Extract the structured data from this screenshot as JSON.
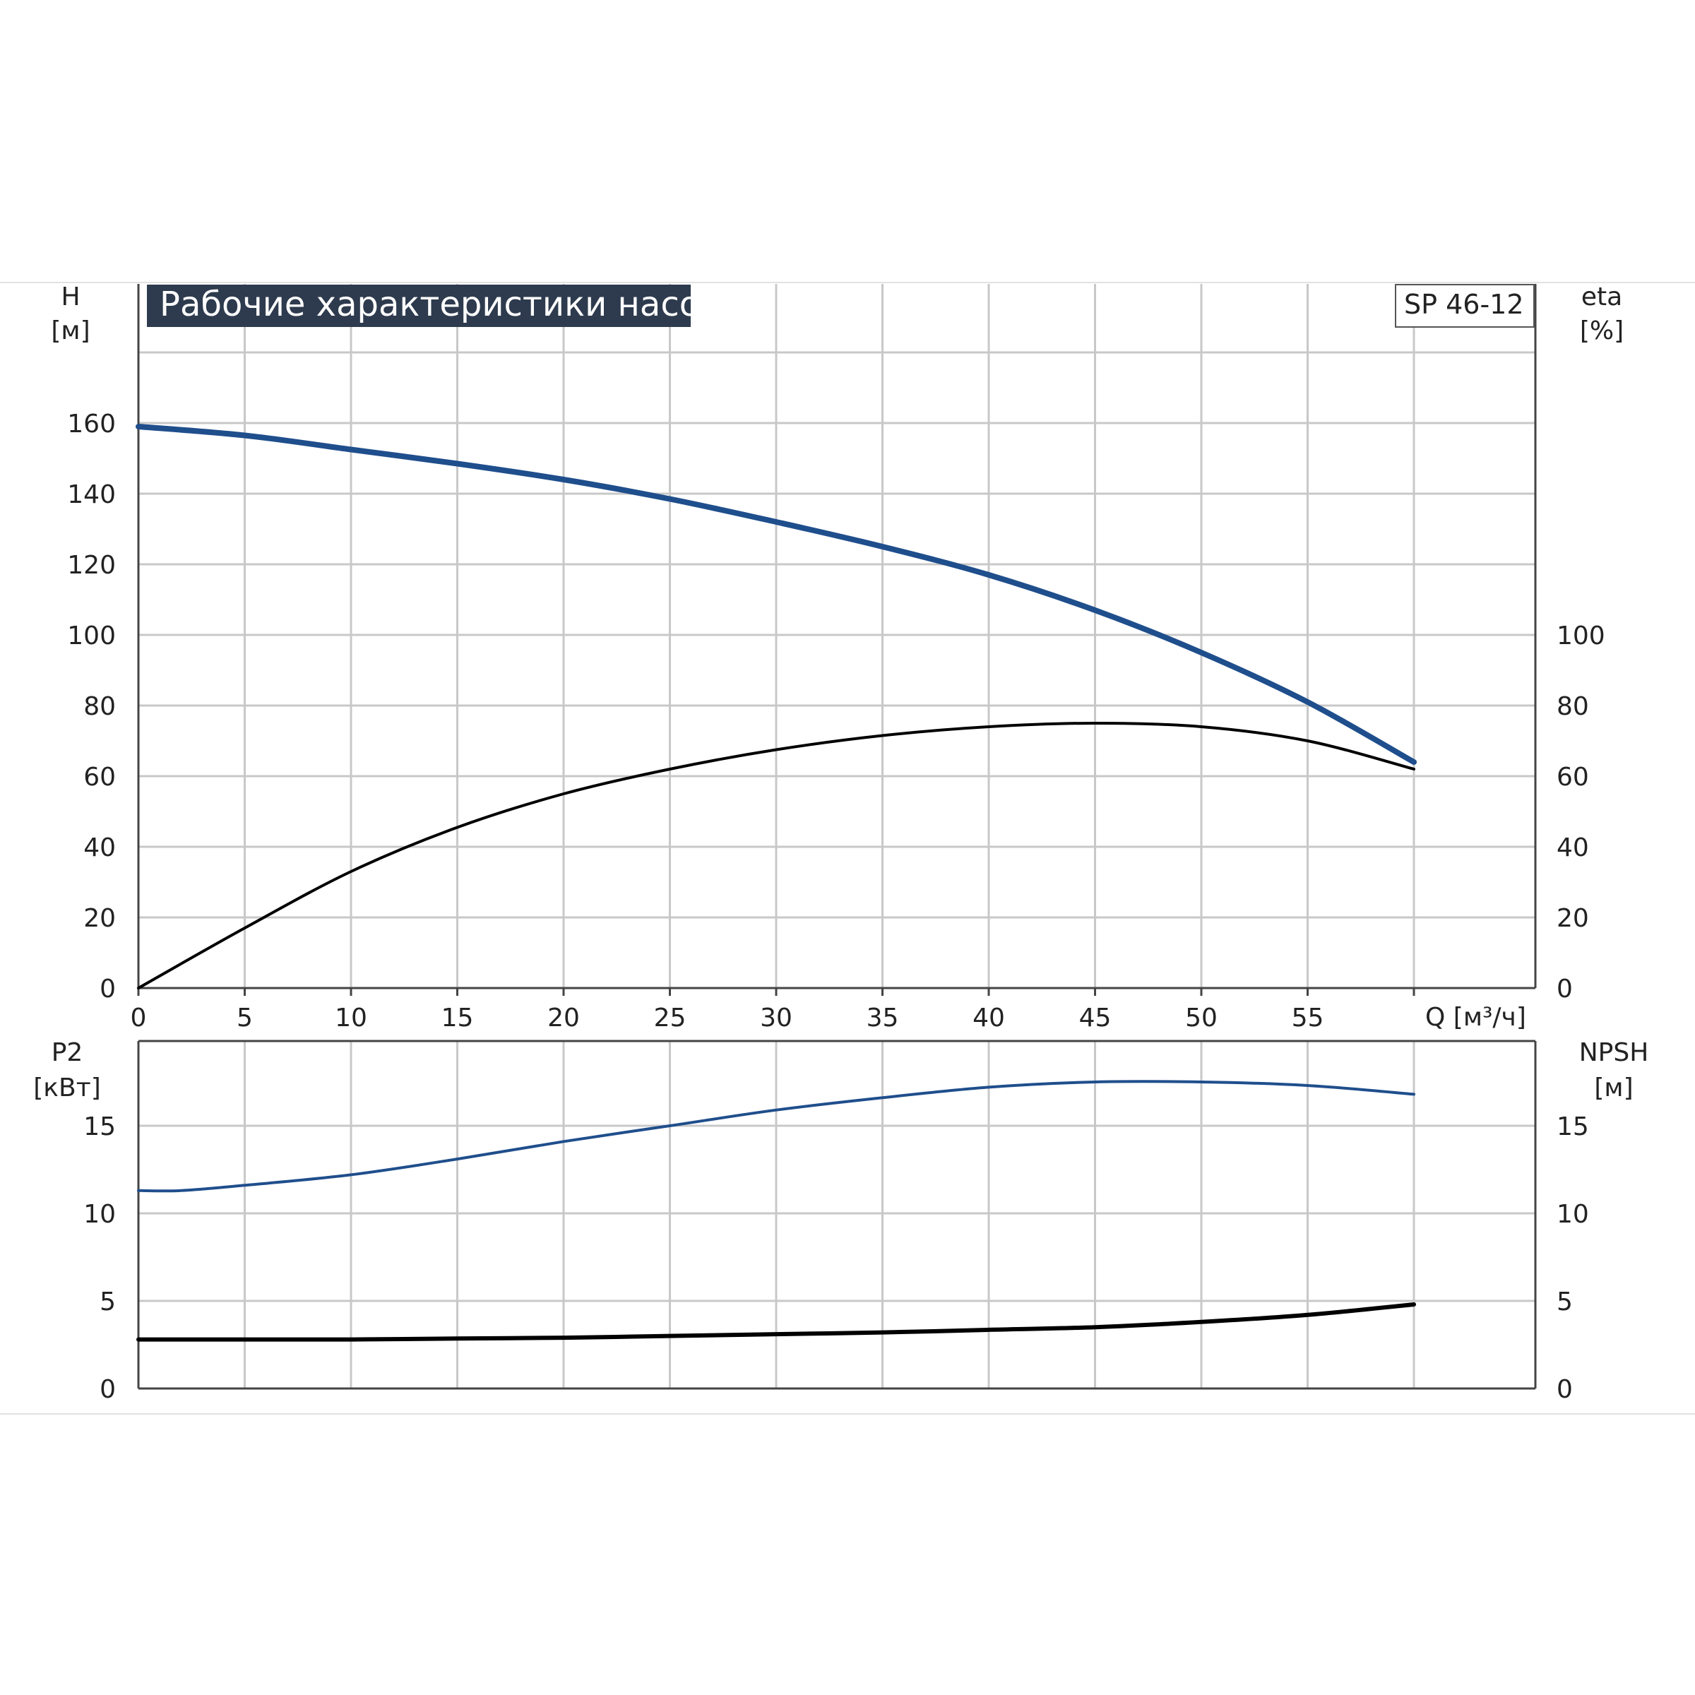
{
  "chart_data": [
    {
      "type": "line",
      "title": "Рабочие характеристики насоса",
      "model": "SP 46-12",
      "xlabel": "Q [м³/ч]",
      "ylabel": [
        "H",
        "[м]"
      ],
      "ylabel_right": [
        "eta",
        "[%]"
      ],
      "xlim": [
        0,
        65
      ],
      "ylim": [
        0,
        195
      ],
      "ylim_right": [
        0,
        195
      ],
      "x_ticks": [
        "0",
        "5",
        "10",
        "15",
        "20",
        "25",
        "30",
        "35",
        "40",
        "45",
        "50",
        "55"
      ],
      "y_ticks": [
        "0",
        "20",
        "40",
        "60",
        "80",
        "100",
        "120",
        "140",
        "160"
      ],
      "y_ticks_right": [
        "0",
        "20",
        "40",
        "60",
        "80",
        "100"
      ],
      "grid": true,
      "series": [
        {
          "color": "#1f4e8c",
          "axis": "left",
          "x": [
            0,
            5,
            10,
            15,
            20,
            25,
            30,
            35,
            40,
            45,
            50,
            55,
            60
          ],
          "y": [
            159,
            156.5,
            152.5,
            148.5,
            144,
            138.5,
            132,
            125,
            117,
            107,
            95,
            81,
            64
          ]
        },
        {
          "color": "#000000",
          "axis": "right",
          "x": [
            0,
            5,
            10,
            15,
            20,
            25,
            30,
            35,
            40,
            45,
            50,
            55,
            60
          ],
          "y": [
            0,
            17,
            33,
            45.5,
            55,
            62,
            67.5,
            71.5,
            74,
            75,
            74,
            70,
            62
          ]
        }
      ]
    },
    {
      "type": "line",
      "ylabel": [
        "P2",
        "[кВт]"
      ],
      "ylabel_right": [
        "NPSH",
        "[м]"
      ],
      "xlim": [
        0,
        65
      ],
      "ylim": [
        0,
        20
      ],
      "ylim_right": [
        0,
        20
      ],
      "y_ticks": [
        "0",
        "5",
        "10",
        "15"
      ],
      "y_ticks_right": [
        "0",
        "5",
        "10",
        "15"
      ],
      "grid": true,
      "series": [
        {
          "color": "#1f4e8c",
          "axis": "left",
          "x": [
            0,
            2,
            5,
            10,
            15,
            20,
            25,
            30,
            35,
            40,
            45,
            50,
            55,
            60
          ],
          "y": [
            11.3,
            11.3,
            11.6,
            12.2,
            13.1,
            14.1,
            15.0,
            15.9,
            16.6,
            17.2,
            17.5,
            17.5,
            17.3,
            16.8
          ]
        },
        {
          "color": "#000000",
          "axis": "right",
          "x": [
            0,
            5,
            10,
            15,
            20,
            25,
            30,
            35,
            40,
            45,
            50,
            55,
            60
          ],
          "y": [
            2.8,
            2.8,
            2.8,
            2.85,
            2.9,
            3.0,
            3.1,
            3.2,
            3.35,
            3.5,
            3.8,
            4.2,
            4.8
          ]
        }
      ]
    }
  ]
}
